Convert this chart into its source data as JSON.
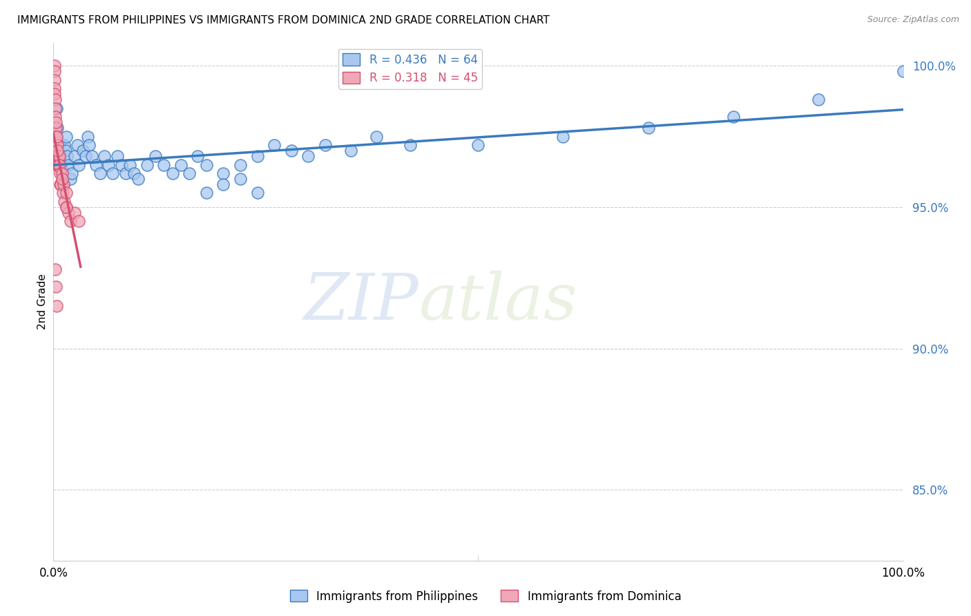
{
  "title": "IMMIGRANTS FROM PHILIPPINES VS IMMIGRANTS FROM DOMINICA 2ND GRADE CORRELATION CHART",
  "source": "Source: ZipAtlas.com",
  "ylabel": "2nd Grade",
  "xlim": [
    0.0,
    1.0
  ],
  "ylim": [
    0.825,
    1.008
  ],
  "yticks": [
    0.85,
    0.9,
    0.95,
    1.0
  ],
  "ytick_labels": [
    "85.0%",
    "90.0%",
    "95.0%",
    "100.0%"
  ],
  "r_philippines": 0.436,
  "n_philippines": 64,
  "r_dominica": 0.318,
  "n_dominica": 45,
  "color_philippines": "#a8c8f0",
  "color_dominica": "#f0a8b8",
  "line_color_philippines": "#3a7abf",
  "line_color_dominica": "#d45070",
  "philippines_x": [
    0.003,
    0.004,
    0.005,
    0.006,
    0.007,
    0.008,
    0.009,
    0.01,
    0.011,
    0.012,
    0.013,
    0.014,
    0.015,
    0.016,
    0.018,
    0.02,
    0.022,
    0.025,
    0.028,
    0.03,
    0.035,
    0.038,
    0.04,
    0.042,
    0.045,
    0.05,
    0.055,
    0.06,
    0.065,
    0.07,
    0.075,
    0.08,
    0.085,
    0.09,
    0.095,
    0.1,
    0.11,
    0.12,
    0.13,
    0.14,
    0.15,
    0.16,
    0.17,
    0.18,
    0.2,
    0.22,
    0.24,
    0.26,
    0.28,
    0.3,
    0.32,
    0.35,
    0.38,
    0.42,
    0.18,
    0.2,
    0.22,
    0.24,
    0.5,
    0.6,
    0.7,
    0.8,
    0.9,
    1.0
  ],
  "philippines_y": [
    0.975,
    0.985,
    0.978,
    0.97,
    0.972,
    0.968,
    0.965,
    0.963,
    0.96,
    0.958,
    0.972,
    0.97,
    0.975,
    0.968,
    0.965,
    0.96,
    0.962,
    0.968,
    0.972,
    0.965,
    0.97,
    0.968,
    0.975,
    0.972,
    0.968,
    0.965,
    0.962,
    0.968,
    0.965,
    0.962,
    0.968,
    0.965,
    0.962,
    0.965,
    0.962,
    0.96,
    0.965,
    0.968,
    0.965,
    0.962,
    0.965,
    0.962,
    0.968,
    0.965,
    0.962,
    0.965,
    0.968,
    0.972,
    0.97,
    0.968,
    0.972,
    0.97,
    0.975,
    0.972,
    0.955,
    0.958,
    0.96,
    0.955,
    0.972,
    0.975,
    0.978,
    0.982,
    0.988,
    0.998
  ],
  "dominica_x": [
    0.001,
    0.001,
    0.001,
    0.001,
    0.001,
    0.002,
    0.002,
    0.002,
    0.002,
    0.002,
    0.003,
    0.003,
    0.003,
    0.003,
    0.004,
    0.004,
    0.004,
    0.005,
    0.005,
    0.005,
    0.006,
    0.006,
    0.007,
    0.007,
    0.008,
    0.008,
    0.009,
    0.01,
    0.011,
    0.012,
    0.013,
    0.015,
    0.015,
    0.018,
    0.02,
    0.025,
    0.03,
    0.003,
    0.004,
    0.005,
    0.01,
    0.015,
    0.002,
    0.003,
    0.004
  ],
  "dominica_y": [
    1.0,
    0.998,
    0.995,
    0.992,
    0.99,
    0.988,
    0.985,
    0.982,
    0.978,
    0.975,
    0.972,
    0.968,
    0.978,
    0.975,
    0.972,
    0.968,
    0.965,
    0.972,
    0.968,
    0.965,
    0.968,
    0.965,
    0.968,
    0.965,
    0.962,
    0.958,
    0.958,
    0.962,
    0.955,
    0.958,
    0.952,
    0.955,
    0.95,
    0.948,
    0.945,
    0.948,
    0.945,
    0.98,
    0.975,
    0.97,
    0.96,
    0.95,
    0.928,
    0.922,
    0.915
  ],
  "watermark_zip": "ZIP",
  "watermark_atlas": "atlas",
  "background_color": "#ffffff",
  "grid_color": "#cccccc"
}
